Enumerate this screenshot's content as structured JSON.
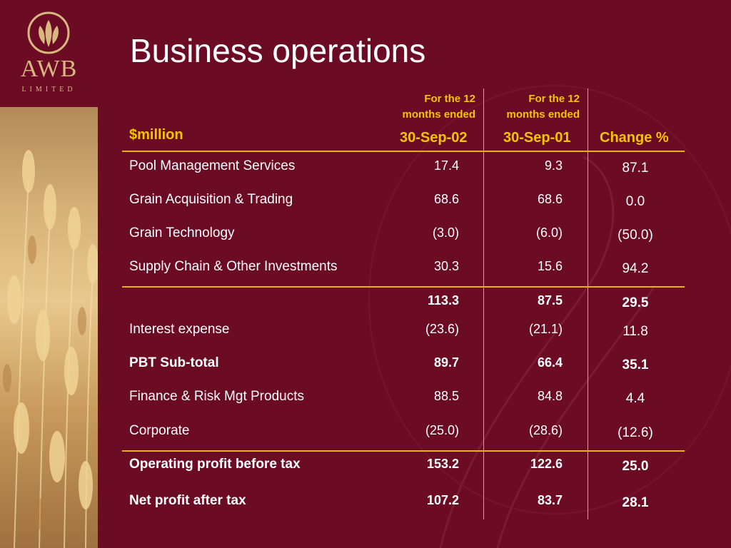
{
  "brand": {
    "name": "AWB",
    "sub": "LIMITED"
  },
  "title": "Business operations",
  "header": {
    "col1_line1": "For the 12",
    "col1_line2": "months ended",
    "col1_date": "30-Sep-02",
    "col2_line1": "For the 12",
    "col2_line2": "months ended",
    "col2_date": "30-Sep-01",
    "unit": "$million",
    "change": "Change %"
  },
  "rows": [
    {
      "label": "Pool Management Services",
      "v1": "17.4",
      "v2": "9.3",
      "chg": "87.1"
    },
    {
      "label": "Grain Acquisition & Trading",
      "v1": "68.6",
      "v2": "68.6",
      "chg": "0.0"
    },
    {
      "label": "Grain Technology",
      "v1": "(3.0)",
      "v2": "(6.0)",
      "chg": "(50.0)"
    },
    {
      "label": "Supply Chain & Other Investments",
      "v1": "30.3",
      "v2": "15.6",
      "chg": "94.2"
    },
    {
      "label": "",
      "v1": "113.3",
      "v2": "87.5",
      "chg": "29.5"
    },
    {
      "label": "Interest expense",
      "v1": "(23.6)",
      "v2": "(21.1)",
      "chg": "11.8"
    },
    {
      "label": "PBT Sub-total",
      "v1": "89.7",
      "v2": "66.4",
      "chg": "35.1"
    },
    {
      "label": "Finance & Risk Mgt Products",
      "v1": "88.5",
      "v2": "84.8",
      "chg": "4.4"
    },
    {
      "label": "Corporate",
      "v1": "(25.0)",
      "v2": "(28.6)",
      "chg": "(12.6)"
    },
    {
      "label": "Operating profit before tax",
      "v1": "153.2",
      "v2": "122.6",
      "chg": "25.0"
    },
    {
      "label": "Net profit after tax",
      "v1": "107.2",
      "v2": "83.7",
      "chg": "28.1"
    }
  ]
}
